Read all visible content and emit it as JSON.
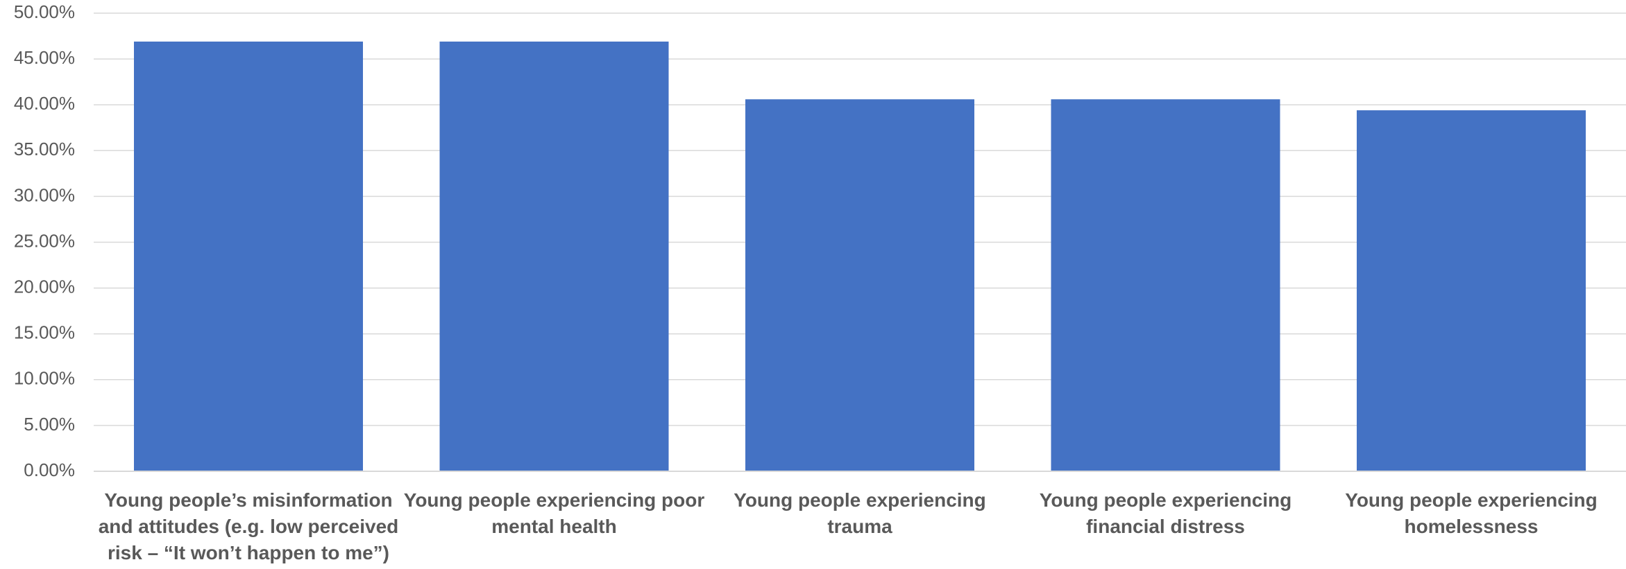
{
  "chart_data": {
    "type": "bar",
    "title": "",
    "xlabel": "",
    "ylabel": "",
    "categories": [
      [
        "Young people’s misinformation",
        "and attitudes (e.g. low perceived",
        "risk – “It won’t happen to me”)"
      ],
      [
        "Young people experiencing poor",
        "mental health"
      ],
      [
        "Young people experiencing",
        "trauma"
      ],
      [
        "Young people experiencing",
        "financial distress"
      ],
      [
        "Young people experiencing",
        "homelessness"
      ]
    ],
    "values": [
      0.469,
      0.469,
      0.406,
      0.406,
      0.394
    ],
    "ylim": [
      0,
      0.5
    ],
    "yticks": [
      0,
      0.05,
      0.1,
      0.15,
      0.2,
      0.25,
      0.3,
      0.35,
      0.4,
      0.45,
      0.5
    ],
    "ytick_labels": [
      "0.00%",
      "5.00%",
      "10.00%",
      "15.00%",
      "20.00%",
      "25.00%",
      "30.00%",
      "35.00%",
      "40.00%",
      "45.00%",
      "50.00%"
    ],
    "grid": true,
    "legend": "none",
    "colors": {
      "bar": "#4472c4",
      "grid": "#d9d9d9",
      "text": "#595959"
    }
  }
}
